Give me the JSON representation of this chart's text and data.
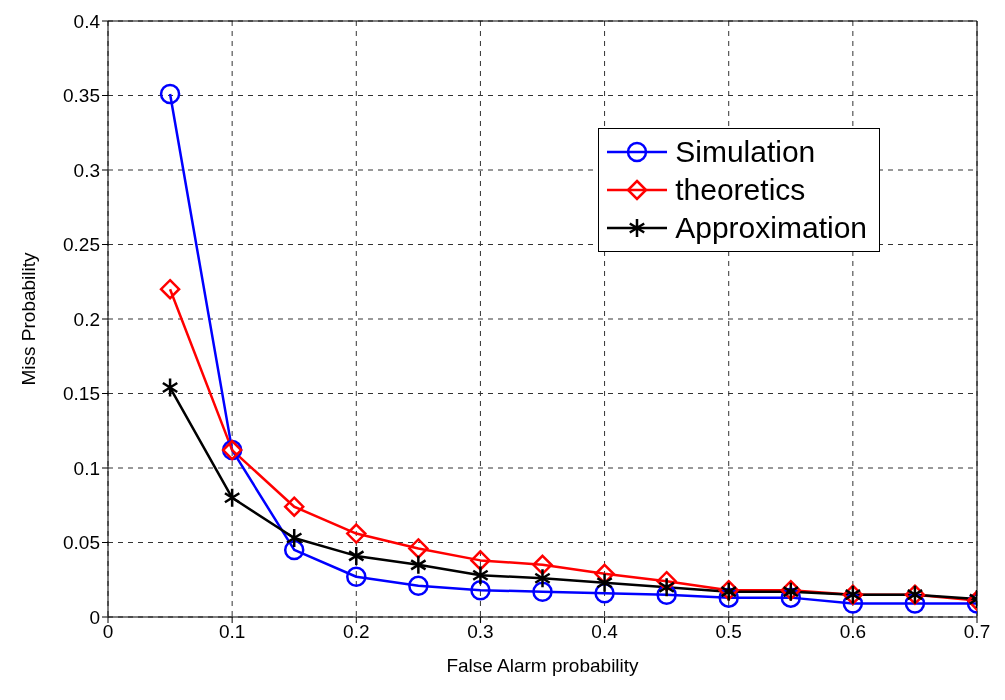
{
  "chart_data": {
    "type": "line",
    "xlabel": "False Alarm probability",
    "ylabel": "Miss Probability",
    "x": [
      0.05,
      0.1,
      0.15,
      0.2,
      0.25,
      0.3,
      0.35,
      0.4,
      0.45,
      0.5,
      0.55,
      0.6,
      0.65,
      0.7
    ],
    "series": [
      {
        "name": "Simulation",
        "color": "#0000ff",
        "marker": "circle",
        "values": [
          0.351,
          0.112,
          0.045,
          0.027,
          0.021,
          0.018,
          0.017,
          0.016,
          0.015,
          0.013,
          0.013,
          0.009,
          0.009,
          0.009
        ]
      },
      {
        "name": "theoretics",
        "color": "#ff0000",
        "marker": "diamond",
        "values": [
          0.22,
          0.112,
          0.074,
          0.056,
          0.046,
          0.038,
          0.035,
          0.029,
          0.024,
          0.018,
          0.018,
          0.015,
          0.015,
          0.011
        ]
      },
      {
        "name": "Approximation",
        "color": "#000000",
        "marker": "cross",
        "values": [
          0.154,
          0.08,
          0.053,
          0.041,
          0.035,
          0.028,
          0.026,
          0.023,
          0.02,
          0.017,
          0.017,
          0.015,
          0.015,
          0.012
        ]
      }
    ],
    "xlim": [
      0,
      0.7
    ],
    "xticks": [
      0,
      0.1,
      0.2,
      0.3,
      0.4,
      0.5,
      0.6,
      0.7
    ],
    "ylim": [
      0,
      0.4
    ],
    "yticks": [
      0,
      0.05,
      0.1,
      0.15,
      0.2,
      0.25,
      0.3,
      0.35,
      0.4
    ],
    "grid": true,
    "legend": "top right",
    "line_style": "solid"
  }
}
